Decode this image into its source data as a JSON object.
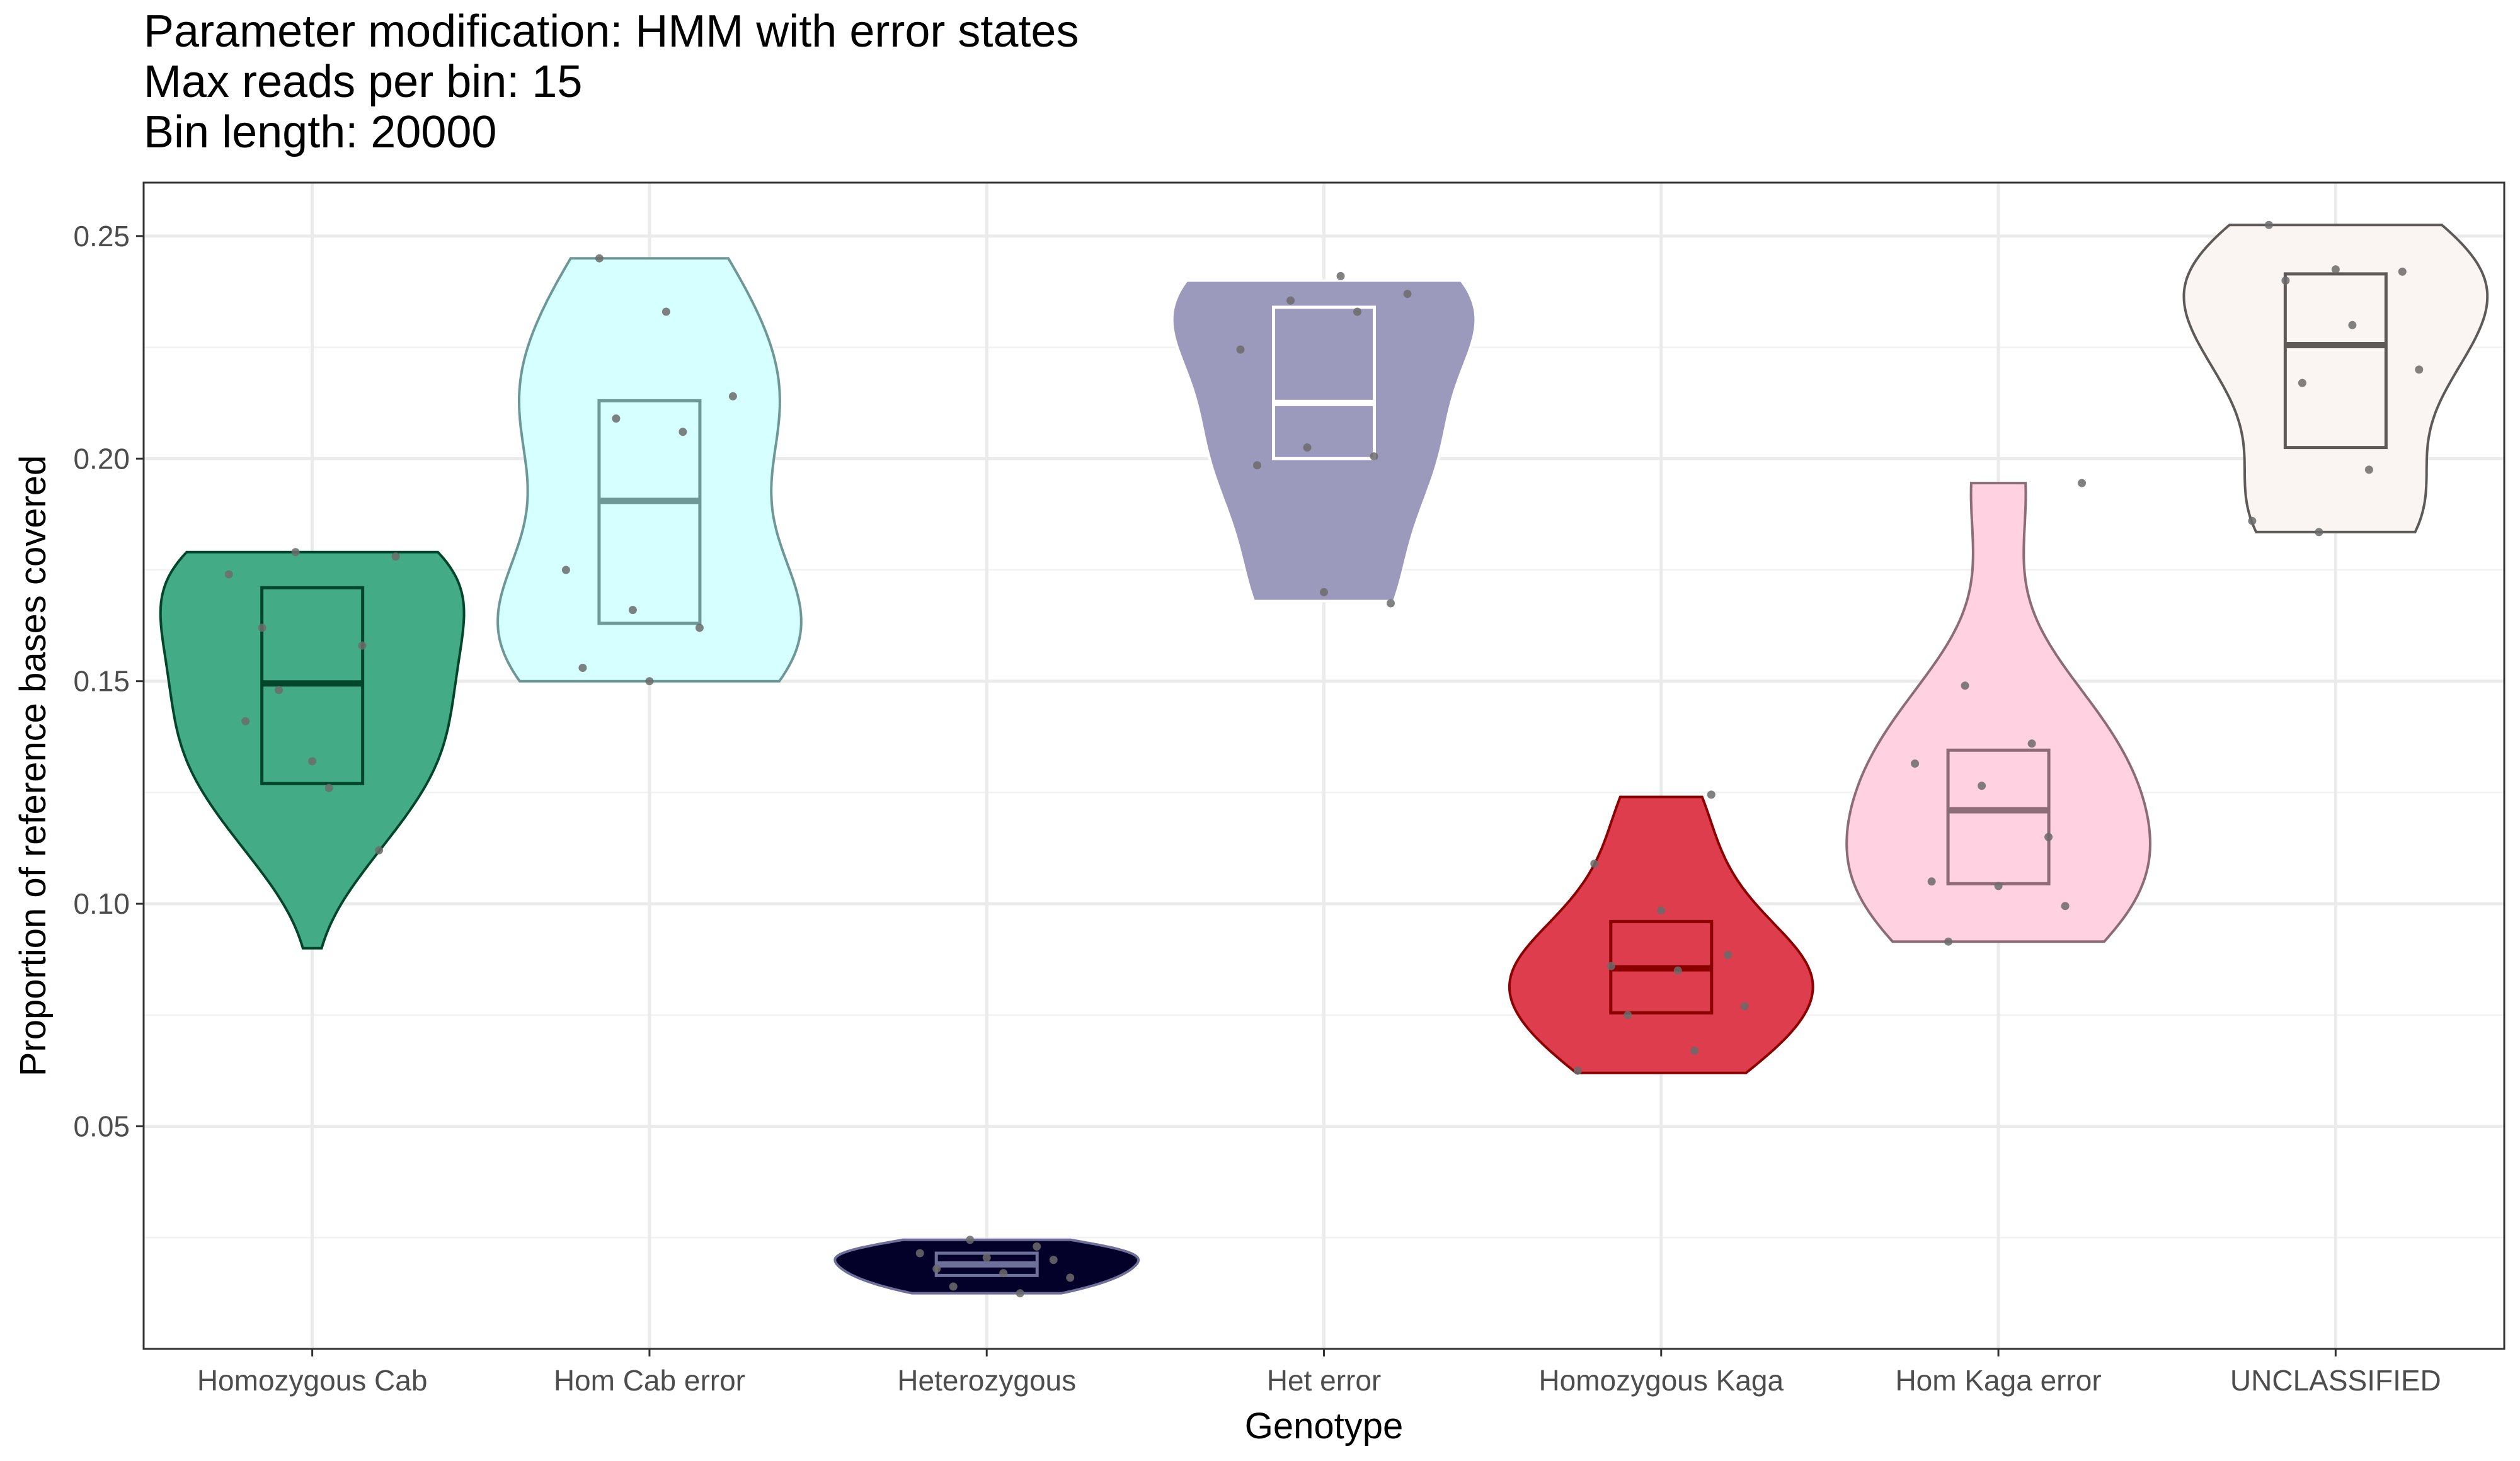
{
  "title_lines": [
    "Parameter modification: HMM with error states",
    "Max reads per bin: 15",
    "Bin length: 20000"
  ],
  "chart_data": {
    "type": "violin",
    "title": "Parameter modification: HMM with error states\nMax reads per bin: 15\nBin length: 20000",
    "xlabel": "Genotype",
    "ylabel": "Proportion of reference bases covered",
    "ylim": [
      0.0,
      0.262
    ],
    "yticks": [
      0.05,
      0.1,
      0.15,
      0.2,
      0.25
    ],
    "ytick_labels": [
      "0.05",
      "0.10",
      "0.15",
      "0.20",
      "0.25"
    ],
    "grid": true,
    "legend": "none",
    "categories": [
      "Homozygous Cab",
      "Hom Cab error",
      "Heterozygous",
      "Het error",
      "Homozygous Kaga",
      "Hom Kaga error",
      "UNCLASSIFIED"
    ],
    "groups": [
      {
        "name": "Homozygous Cab",
        "fill": "#43AC86",
        "line": "#00462A",
        "min": 0.09,
        "max": 0.179,
        "q1": 0.127,
        "median": 0.1495,
        "q3": 0.171,
        "points": [
          0.174,
          0.179,
          0.158,
          0.141,
          0.132,
          0.112,
          0.162,
          0.126,
          0.178,
          0.148
        ]
      },
      {
        "name": "Hom Cab error",
        "fill": "#D6FFFF",
        "line": "#6E9798",
        "min": 0.15,
        "max": 0.245,
        "q1": 0.163,
        "median": 0.1905,
        "q3": 0.213,
        "points": [
          0.245,
          0.233,
          0.214,
          0.209,
          0.206,
          0.175,
          0.166,
          0.162,
          0.153,
          0.15
        ]
      },
      {
        "name": "Heterozygous",
        "fill": "#03002A",
        "line": "#6E7099",
        "min": 0.0125,
        "max": 0.0245,
        "q1": 0.0165,
        "median": 0.019,
        "q3": 0.0215,
        "points": [
          0.0245,
          0.023,
          0.0215,
          0.0205,
          0.02,
          0.018,
          0.017,
          0.016,
          0.014,
          0.0125
        ]
      },
      {
        "name": "Het error",
        "fill": "#9B9ABD",
        "line": "#FFFFFF",
        "min": 0.168,
        "max": 0.24,
        "q1": 0.2,
        "median": 0.2125,
        "q3": 0.234,
        "points": [
          0.241,
          0.237,
          0.2355,
          0.233,
          0.2245,
          0.2025,
          0.2005,
          0.1985,
          0.17,
          0.1675
        ]
      },
      {
        "name": "Homozygous Kaga",
        "fill": "#DE3D4D",
        "line": "#8B0000",
        "min": 0.062,
        "max": 0.124,
        "q1": 0.0755,
        "median": 0.0855,
        "q3": 0.096,
        "points": [
          0.1245,
          0.109,
          0.0985,
          0.0885,
          0.086,
          0.085,
          0.077,
          0.075,
          0.067,
          0.0625
        ]
      },
      {
        "name": "Hom Kaga error",
        "fill": "#FFD1E1",
        "line": "#8C6C77",
        "min": 0.0915,
        "max": 0.1945,
        "q1": 0.1045,
        "median": 0.121,
        "q3": 0.1345,
        "points": [
          0.1945,
          0.149,
          0.136,
          0.1315,
          0.1265,
          0.115,
          0.105,
          0.104,
          0.0995,
          0.0915
        ]
      },
      {
        "name": "UNCLASSIFIED",
        "fill": "#FAF5F2",
        "line": "#5E5A58",
        "min": 0.1835,
        "max": 0.2525,
        "q1": 0.2025,
        "median": 0.2255,
        "q3": 0.2415,
        "points": [
          0.2525,
          0.2425,
          0.242,
          0.24,
          0.23,
          0.22,
          0.217,
          0.1975,
          0.186,
          0.1835
        ]
      }
    ]
  }
}
